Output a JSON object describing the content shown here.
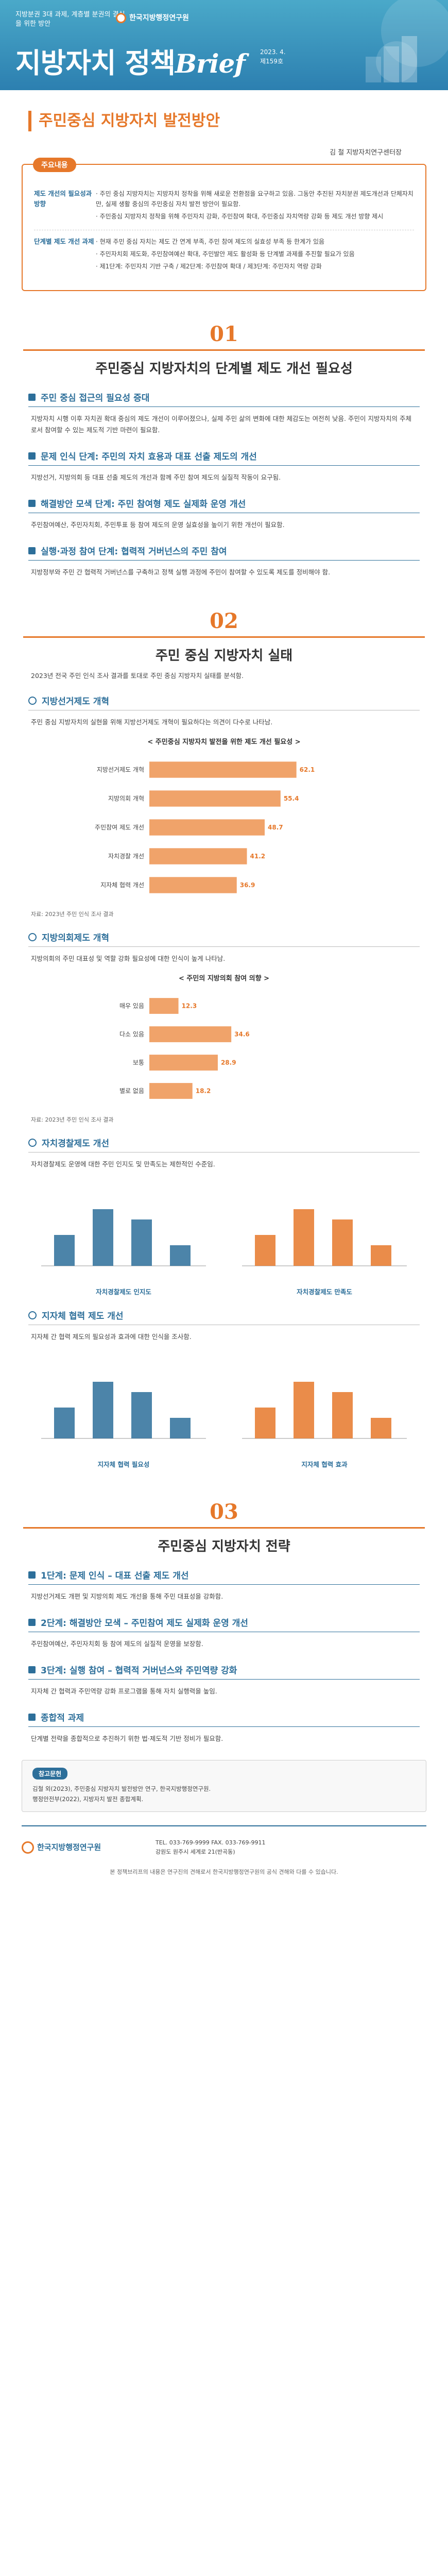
{
  "header": {
    "tagline": "지방분권 3대 과제, 계층별 분권의 결실을 위한 방안",
    "org": "한국지방행정연구원",
    "title_a": "지방자치 정책",
    "title_b": "Brief",
    "issue": "2023. 4.",
    "issue_no": "제159호"
  },
  "main_title": "주민중심 지방자치 발전방안",
  "author": "김 철 지방자치연구센터장",
  "summary": {
    "label": "주요내용",
    "rows": [
      {
        "key": "제도 개선의 필요성과 방향",
        "lines": [
          "· 주민 중심 지방자치는 지방자치 정착을 위해 새로운 전환점을 요구하고 있음. 그동안 추진된 자치분권 제도개선과 단체자치만, 실제 생활 중심의 주민중심 자치 발전 방안이 필요함.",
          "· 주민중심 지방자치 정착을 위해 주민자치 강화, 주민참여 확대, 주민중심 자치역량 강화 등 제도 개선 방향 제시"
        ]
      },
      {
        "key": "단계별 제도 개선 과제",
        "lines": [
          "· 현재 주민 중심 자치는 제도 간 연계 부족, 주민 참여 제도의 실효성 부족 등 한계가 있음",
          "· 주민자치회 제도화, 주민참여예산 확대, 주민발안 제도 활성화 등 단계별 과제를 추진할 필요가 있음",
          "· 제1단계: 주민자치 기반 구축 / 제2단계: 주민참여 확대 / 제3단계: 주민자치 역량 강화"
        ]
      }
    ]
  },
  "section1": {
    "num": "01",
    "title": "주민중심 지방자치의 단계별 제도 개선 필요성",
    "subs": [
      {
        "title": "주민 중심 접근의 필요성 증대",
        "text": "지방자치 시행 이후 자치권 확대 중심의 제도 개선이 이루어졌으나, 실제 주민 삶의 변화에 대한 체감도는 여전히 낮음. 주민이 지방자치의 주체로서 참여할 수 있는 제도적 기반 마련이 필요함."
      },
      {
        "title": "문제 인식 단계: 주민의 자치 효용과 대표 선출 제도의 개선",
        "text": "지방선거, 지방의회 등 대표 선출 제도의 개선과 함께 주민 참여 제도의 실질적 작동이 요구됨."
      },
      {
        "title": "해결방안 모색 단계: 주민 참여형 제도 실제화 운영 개선",
        "text": "주민참여예산, 주민자치회, 주민투표 등 참여 제도의 운영 실효성을 높이기 위한 개선이 필요함."
      },
      {
        "title": "실행·과정 참여 단계: 협력적 거버넌스의 주민 참여",
        "text": "지방정부와 주민 간 협력적 거버넌스를 구축하고 정책 실행 과정에 주민이 참여할 수 있도록 제도를 정비해야 함."
      }
    ]
  },
  "section2": {
    "num": "02",
    "title": "주민 중심 지방자치 실태",
    "intro": "2023년 전국 주민 인식 조사 결과를 토대로 주민 중심 지방자치 실태를 분석함.",
    "subs": [
      {
        "title": "지방선거제도 개혁",
        "text": "주민 중심 지방자치의 실현을 위해 지방선거제도 개혁이 필요하다는 의견이 다수로 나타남."
      },
      {
        "title": "지방의회제도 개혁",
        "text": "지방의회의 주민 대표성 및 역할 강화 필요성에 대한 인식이 높게 나타남."
      },
      {
        "title": "자치경찰제도 개선",
        "text": "자치경찰제도 운영에 대한 주민 인지도 및 만족도는 제한적인 수준임."
      },
      {
        "title": "지자체 협력 제도 개선",
        "text": "지자체 간 협력 제도의 필요성과 효과에 대한 인식을 조사함."
      }
    ]
  },
  "section3": {
    "num": "03",
    "title": "주민중심 지방자치 전략",
    "subs": [
      {
        "title": "1단계: 문제 인식 – 대표 선출 제도 개선",
        "text": "지방선거제도 개편 및 지방의회 제도 개선을 통해 주민 대표성을 강화함."
      },
      {
        "title": "2단계: 해결방안 모색 – 주민참여 제도 실제화 운영 개선",
        "text": "주민참여예산, 주민자치회 등 참여 제도의 실질적 운영을 보장함."
      },
      {
        "title": "3단계: 실행 참여 – 협력적 거버넌스와 주민역량 강화",
        "text": "지자체 간 협력과 주민역량 강화 프로그램을 통해 자치 실행력을 높임."
      },
      {
        "title": "종합적 과제",
        "text": "단계별 전략을 종합적으로 추진하기 위한 법·제도적 기반 정비가 필요함."
      }
    ]
  },
  "charts": {
    "c1_title": "< 주민중심 지방자치 발전을 위한 제도 개선 필요성 >",
    "c2_title": "< 주민의 지방의회 참여 의향 >",
    "pair1_caps": [
      "자치경찰제도 인지도",
      "자치경찰제도 만족도"
    ],
    "pair2_caps": [
      "지자체 협력 필요성",
      "지자체 협력 효과"
    ],
    "note": "자료: 2023년 주민 인식 조사 결과"
  },
  "chart_data": [
    {
      "type": "bar",
      "categories": [
        "지방선거제도 개혁",
        "지방의회 개혁",
        "주민참여 제도 개선",
        "자치경찰 개선",
        "지자체 협력 개선"
      ],
      "values": [
        62.1,
        55.4,
        48.7,
        41.2,
        36.9
      ],
      "ylim": [
        0,
        100
      ]
    },
    {
      "type": "bar",
      "categories": [
        "매우 있음",
        "다소 있음",
        "보통",
        "별로 없음"
      ],
      "values": [
        12.3,
        34.6,
        28.9,
        18.2
      ],
      "ylim": [
        0,
        100
      ]
    }
  ],
  "references": {
    "label": "참고문헌",
    "items": [
      "김철 외(2023), 주민중심 지방자치 발전방안 연구, 한국지방행정연구원.",
      "행정안전부(2022), 지방자치 발전 종합계획."
    ]
  },
  "footer": {
    "org": "한국지방행정연구원",
    "contact": "TEL. 033-769-9999  FAX. 033-769-9911",
    "address": "강원도 원주시 세계로 21(반곡동)",
    "copyright": "본 정책브리프의 내용은 연구진의 견해로서 한국지방행정연구원의 공식 견해와 다를 수 있습니다."
  }
}
